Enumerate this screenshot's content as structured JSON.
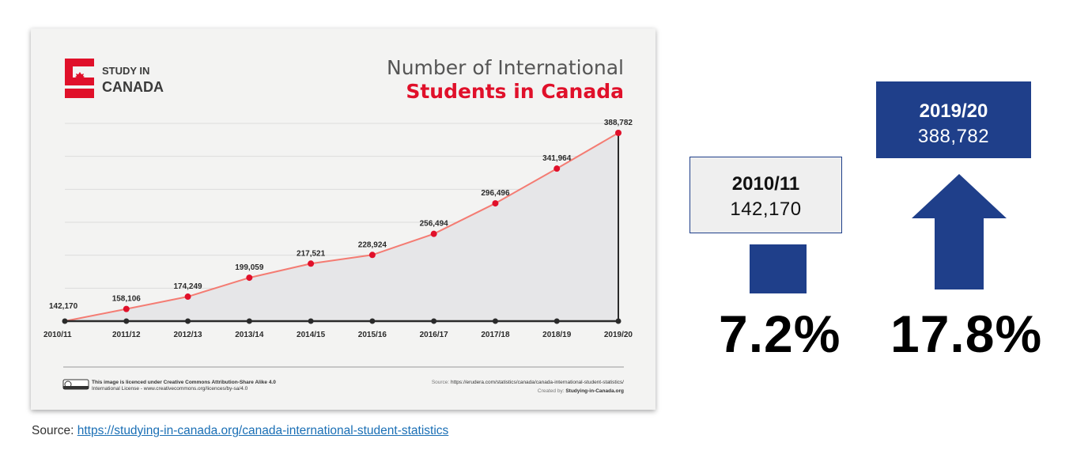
{
  "chart_data": {
    "type": "area",
    "logo": {
      "line1": "STUDY IN",
      "line2": "CANADA"
    },
    "title": "Number of International",
    "subtitle": "Students in Canada",
    "categories": [
      "2010/11",
      "2011/12",
      "2012/13",
      "2013/14",
      "2014/15",
      "2015/16",
      "2016/17",
      "2017/18",
      "2018/19",
      "2019/20"
    ],
    "values": [
      142170,
      158106,
      174249,
      199059,
      217521,
      228924,
      256494,
      296496,
      341964,
      388782
    ],
    "data_labels": [
      "142,170",
      "158,106",
      "174,249",
      "199,059",
      "217,521",
      "228,924",
      "256,494",
      "296,496",
      "341,964",
      "388,782"
    ],
    "ylim": [
      142170,
      388782
    ],
    "grid": true,
    "line_color": "#f47c73",
    "marker_color": "#e0102a",
    "fill_color": "#e6e6e8",
    "license_text_1": "This image is licenced under Creative Commons Attribution-Share Alike 4.0",
    "license_text_2": "International License - www.creativecommons.org/licences/by-sa/4.0",
    "source_prefix": "Source:",
    "source_url": "https://erudera.com/statistics/canada/canada-international-student-statistics/",
    "created_prefix": "Created by:",
    "created_by": "Studying-in-Canada.org"
  },
  "source_label": "Source:",
  "source_link": "https://studying-in-canada.org/canada-international-student-statistics",
  "comparison": {
    "start": {
      "label": "2010/11",
      "value": "142,170",
      "percent": "7.2%"
    },
    "end": {
      "label": "2019/20",
      "value": "388,782",
      "percent": "17.8%"
    }
  },
  "colors": {
    "navy": "#1f3f8a",
    "red": "#e0102a"
  }
}
